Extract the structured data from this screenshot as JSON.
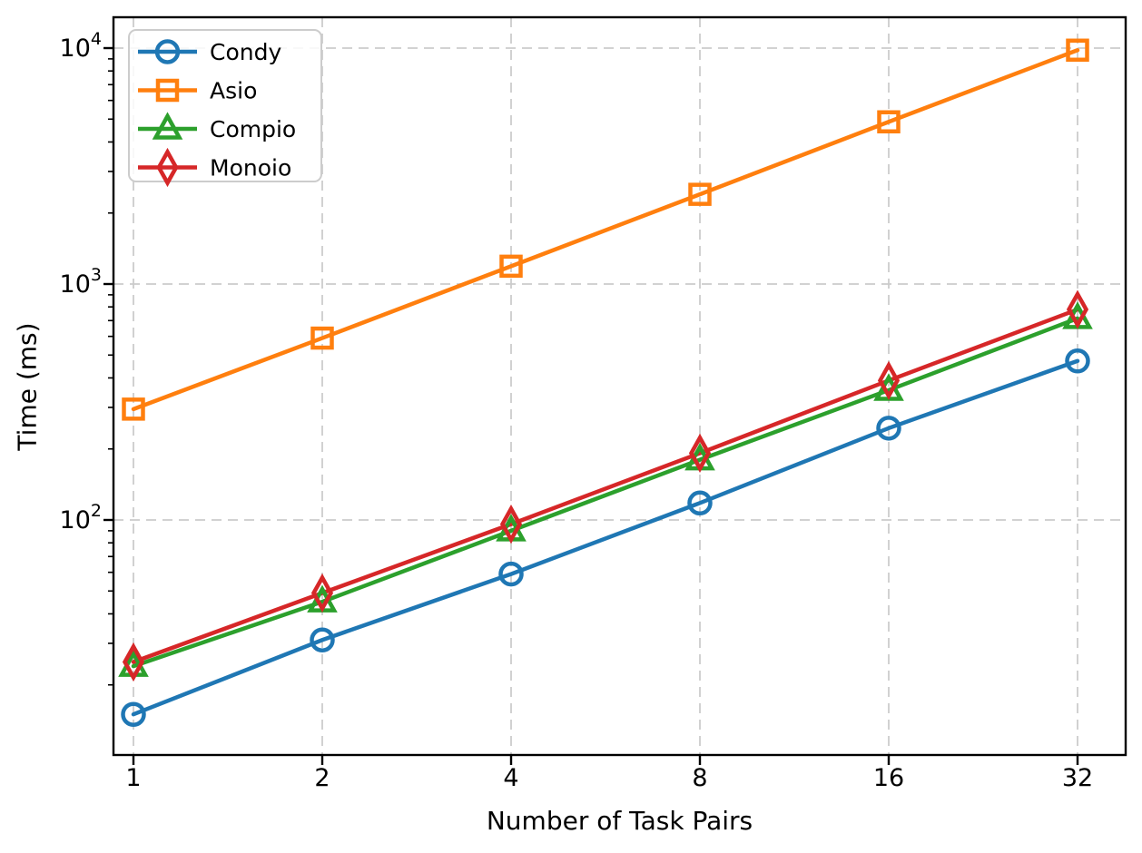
{
  "figure": {
    "background": "#ffffff",
    "axes_color": "#000000",
    "grid_color": "#cccccc",
    "legend_border_color": "#cccccc"
  },
  "chart_data": {
    "type": "line",
    "title": "",
    "xlabel": "Number of Task Pairs",
    "ylabel": "Time (ms)",
    "x_scale": "log2",
    "y_scale": "log10",
    "categories": [
      1,
      2,
      4,
      8,
      16,
      32
    ],
    "x_tick_labels": [
      "1",
      "2",
      "4",
      "8",
      "16",
      "32"
    ],
    "y_tick_values": [
      100,
      1000,
      10000
    ],
    "y_tick_base": "10",
    "y_tick_exponents": [
      "2",
      "3",
      "4"
    ],
    "xlim": [
      0.93,
      34.5
    ],
    "ylim": [
      10,
      13500
    ],
    "grid": {
      "show": true,
      "style": "dashed",
      "which": "major"
    },
    "legend": {
      "position": "upper-left"
    },
    "series": [
      {
        "name": "Condy",
        "color": "#1f77b4",
        "marker": "circle",
        "values": [
          15,
          31,
          59,
          118,
          245,
          472
        ]
      },
      {
        "name": "Asio",
        "color": "#ff7f0e",
        "marker": "square",
        "values": [
          295,
          590,
          1190,
          2400,
          4870,
          9800
        ]
      },
      {
        "name": "Compio",
        "color": "#2ca02c",
        "marker": "triangle",
        "values": [
          24,
          45,
          90,
          180,
          355,
          715
        ]
      },
      {
        "name": "Monoio",
        "color": "#d62728",
        "marker": "thin-diamond",
        "values": [
          25,
          49,
          96,
          192,
          390,
          780
        ]
      }
    ]
  }
}
